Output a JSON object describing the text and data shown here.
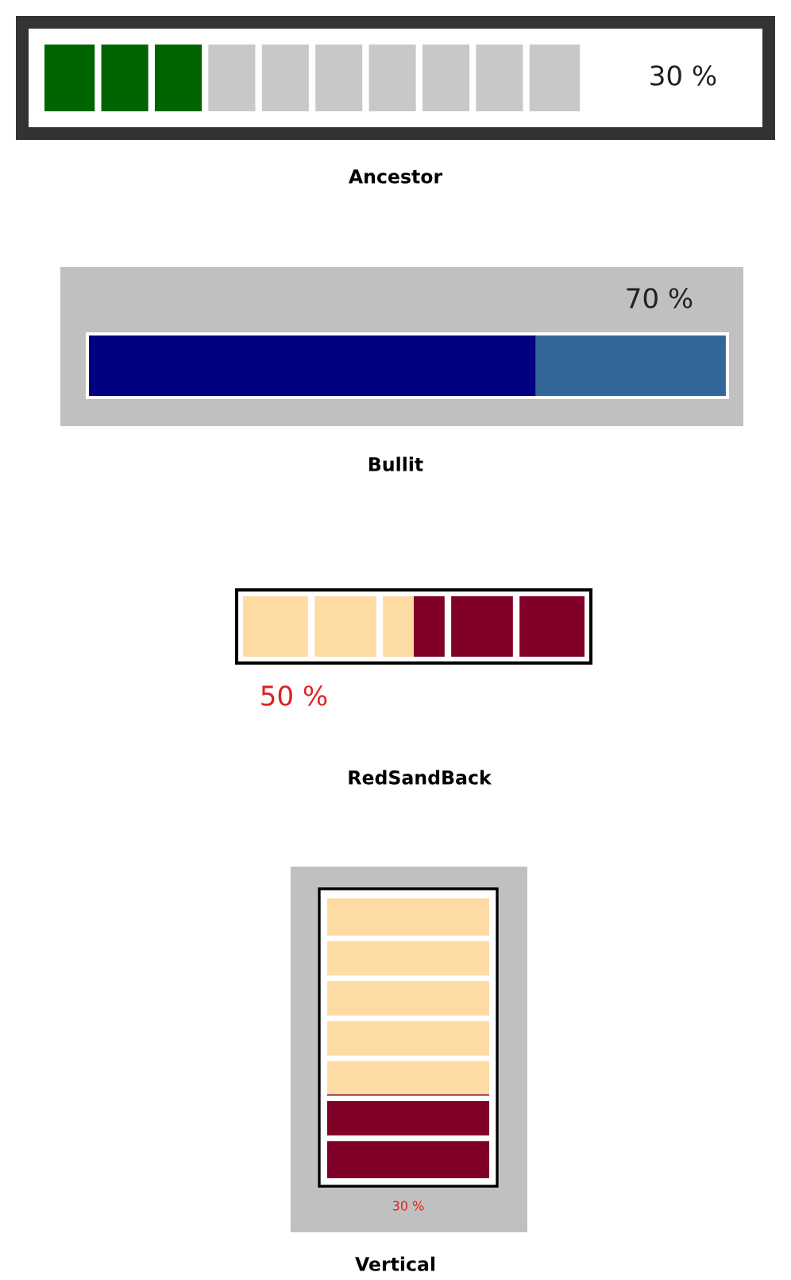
{
  "chart_data": [
    {
      "type": "other",
      "title": "Ancestor",
      "values": [
        30
      ],
      "value_labels": [
        "30 %"
      ]
    },
    {
      "type": "other",
      "title": "Bullit",
      "values": [
        70
      ],
      "value_labels": [
        "70 %"
      ]
    },
    {
      "type": "other",
      "title": "RedSandBack",
      "values": [
        50
      ],
      "value_labels": [
        "50 %"
      ]
    },
    {
      "type": "other",
      "title": "Vertical",
      "values": [
        30
      ],
      "value_labels": [
        "30 %"
      ]
    }
  ]
}
